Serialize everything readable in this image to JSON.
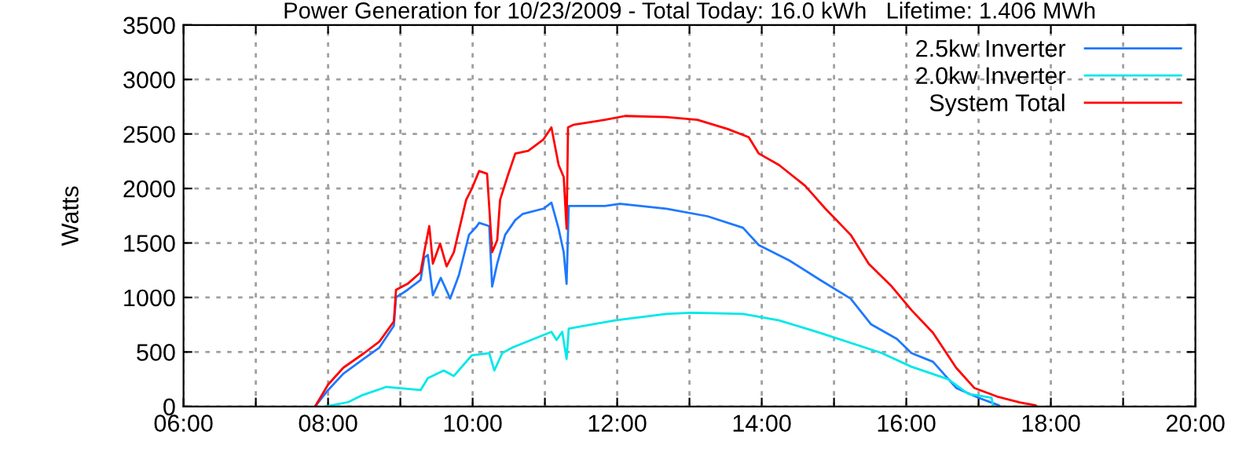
{
  "chart_data": {
    "type": "line",
    "title": "Power Generation for 10/23/2009 - Total Today: 16.0 kWh   Lifetime: 1.406 MWh",
    "ylabel": "Watts",
    "xlim": [
      6,
      20
    ],
    "ylim": [
      0,
      3500
    ],
    "xticks": [
      {
        "value": 6,
        "label": "06:00"
      },
      {
        "value": 7,
        "label": null
      },
      {
        "value": 8,
        "label": "08:00"
      },
      {
        "value": 9,
        "label": null
      },
      {
        "value": 10,
        "label": "10:00"
      },
      {
        "value": 11,
        "label": null
      },
      {
        "value": 12,
        "label": "12:00"
      },
      {
        "value": 13,
        "label": null
      },
      {
        "value": 14,
        "label": "14:00"
      },
      {
        "value": 15,
        "label": null
      },
      {
        "value": 16,
        "label": "16:00"
      },
      {
        "value": 17,
        "label": null
      },
      {
        "value": 18,
        "label": "18:00"
      },
      {
        "value": 19,
        "label": null
      },
      {
        "value": 20,
        "label": "20:00"
      }
    ],
    "yticks": [
      0,
      500,
      1000,
      1500,
      2000,
      2500,
      3000,
      3500
    ],
    "grid": true,
    "legend": "top right",
    "series": [
      {
        "name": "2.5kw Inverter",
        "color": "#1e78ff",
        "x": [
          7.82,
          8.0,
          8.21,
          8.5,
          8.71,
          8.91,
          8.94,
          9.1,
          9.28,
          9.33,
          9.38,
          9.45,
          9.56,
          9.69,
          9.81,
          9.95,
          10.06,
          10.09,
          10.23,
          10.27,
          10.34,
          10.45,
          10.59,
          10.69,
          10.98,
          11.09,
          11.19,
          11.26,
          11.3,
          11.33,
          11.83,
          12.04,
          12.68,
          13.25,
          13.74,
          13.96,
          14.38,
          14.81,
          15.23,
          15.51,
          15.87,
          16.07,
          16.37,
          16.69,
          17.0,
          17.28,
          17.3
        ],
        "values": [
          0,
          150,
          300,
          440,
          540,
          740,
          1000,
          1070,
          1160,
          1365,
          1390,
          1020,
          1180,
          990,
          1205,
          1575,
          1655,
          1685,
          1655,
          1100,
          1310,
          1575,
          1710,
          1765,
          1815,
          1870,
          1630,
          1415,
          1125,
          1840,
          1840,
          1860,
          1815,
          1745,
          1640,
          1480,
          1340,
          1160,
          990,
          755,
          620,
          490,
          410,
          170,
          80,
          10,
          0
        ]
      },
      {
        "name": "2.0kw Inverter",
        "color": "#00e8e8",
        "x": [
          7.96,
          8.28,
          8.46,
          8.81,
          9.28,
          9.38,
          9.6,
          9.74,
          9.99,
          10.23,
          10.3,
          10.41,
          10.55,
          11.09,
          11.16,
          11.24,
          11.3,
          11.33,
          11.97,
          12.68,
          13.04,
          13.74,
          14.24,
          14.81,
          15.66,
          16.07,
          16.58,
          16.86,
          17.18,
          17.2
        ],
        "values": [
          0,
          40,
          100,
          180,
          150,
          260,
          330,
          280,
          470,
          490,
          330,
          490,
          540,
          685,
          610,
          685,
          435,
          715,
          790,
          850,
          860,
          850,
          790,
          675,
          490,
          365,
          250,
          115,
          80,
          0
        ]
      },
      {
        "name": "System Total",
        "color": "#ff0000",
        "x": [
          7.82,
          8.0,
          8.21,
          8.5,
          8.71,
          8.91,
          8.94,
          9.1,
          9.28,
          9.33,
          9.4,
          9.45,
          9.55,
          9.64,
          9.74,
          9.91,
          9.99,
          10.09,
          10.2,
          10.27,
          10.34,
          10.38,
          10.48,
          10.59,
          10.77,
          10.98,
          11.09,
          11.19,
          11.26,
          11.3,
          11.32,
          11.4,
          11.83,
          12.11,
          12.68,
          13.11,
          13.53,
          13.82,
          13.96,
          14.24,
          14.6,
          14.88,
          15.23,
          15.48,
          15.8,
          16.07,
          16.37,
          16.69,
          16.94,
          17.26,
          17.57,
          17.79,
          17.8
        ],
        "values": [
          0,
          200,
          355,
          490,
          595,
          780,
          1070,
          1125,
          1230,
          1415,
          1655,
          1310,
          1495,
          1285,
          1415,
          1895,
          2000,
          2160,
          2135,
          1415,
          1525,
          1895,
          2105,
          2320,
          2345,
          2450,
          2560,
          2215,
          2105,
          1630,
          2560,
          2585,
          2630,
          2665,
          2655,
          2630,
          2545,
          2470,
          2320,
          2215,
          2025,
          1815,
          1575,
          1310,
          1100,
          885,
          675,
          355,
          170,
          90,
          37,
          10,
          0
        ]
      }
    ]
  }
}
